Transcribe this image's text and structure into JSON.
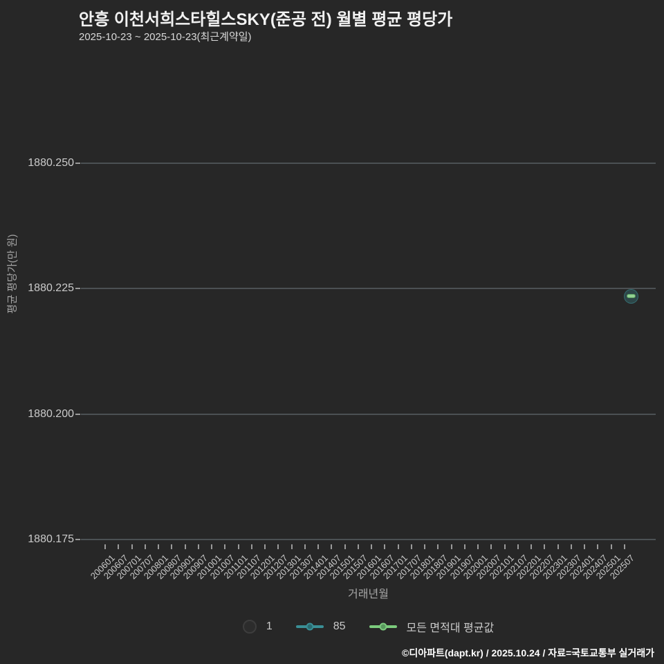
{
  "header": {
    "title": "안흥 이천서희스타힐스SKY(준공 전) 월별 평균 평당가",
    "subtitle": "2025-10-23 ~ 2025-10-23(최근계약일)"
  },
  "colors": {
    "background": "#272727",
    "gridline": "#4c5154",
    "tick": "#9a9a9a",
    "label": "#cbcbcb",
    "axis_title": "#a6a6a6",
    "series_85_teal": "#3a8f96",
    "series_avg_green": "#7ccb7d",
    "point_dash_green": "#93d193",
    "legend_bubble_fill": "#2c2c2c"
  },
  "chart_data": {
    "type": "scatter",
    "title": "안흥 이천서희스타힐스SKY(준공 전) 월별 평균 평당가",
    "subtitle": "2025-10-23 ~ 2025-10-23(최근계약일)",
    "xlabel": "거래년월",
    "ylabel": "평균 평당가(만 원)",
    "grid": true,
    "legend_position": "bottom",
    "y_tick_labels": [
      "1880.250",
      "1880.225",
      "1880.200",
      "1880.175"
    ],
    "y_tick_values": [
      1880.25,
      1880.225,
      1880.2,
      1880.175
    ],
    "ylim": [
      1880.175,
      1880.25
    ],
    "x_tick_labels": [
      "200601",
      "200607",
      "200701",
      "200707",
      "200801",
      "200807",
      "200901",
      "200907",
      "201001",
      "201007",
      "201101",
      "201107",
      "201201",
      "201207",
      "201301",
      "201307",
      "201401",
      "201407",
      "201501",
      "201507",
      "201601",
      "201607",
      "201701",
      "201707",
      "201801",
      "201807",
      "201901",
      "201907",
      "202001",
      "202007",
      "202101",
      "202107",
      "202201",
      "202207",
      "202301",
      "202307",
      "202401",
      "202407",
      "202501",
      "202507"
    ],
    "series": [
      {
        "name": "85",
        "marker": "bubble",
        "color": "#3a8f96",
        "points": [
          {
            "x": "202510",
            "y": 1880.2235,
            "count": 1
          }
        ]
      },
      {
        "name": "모든 면적대 평균값",
        "marker": "dash",
        "color": "#7ccb7d",
        "points": [
          {
            "x": "202510",
            "y": 1880.2235
          }
        ]
      }
    ]
  },
  "legend": {
    "items": [
      {
        "label": "1",
        "swatch": "bubble-size"
      },
      {
        "label": "85",
        "swatch": "line-dot-teal"
      },
      {
        "label": "모든 면적대 평균값",
        "swatch": "line-dot-green"
      }
    ]
  },
  "footer": {
    "text": "©디아파트(dapt.kr) / 2025.10.24 / 자료=국토교통부 실거래가"
  }
}
